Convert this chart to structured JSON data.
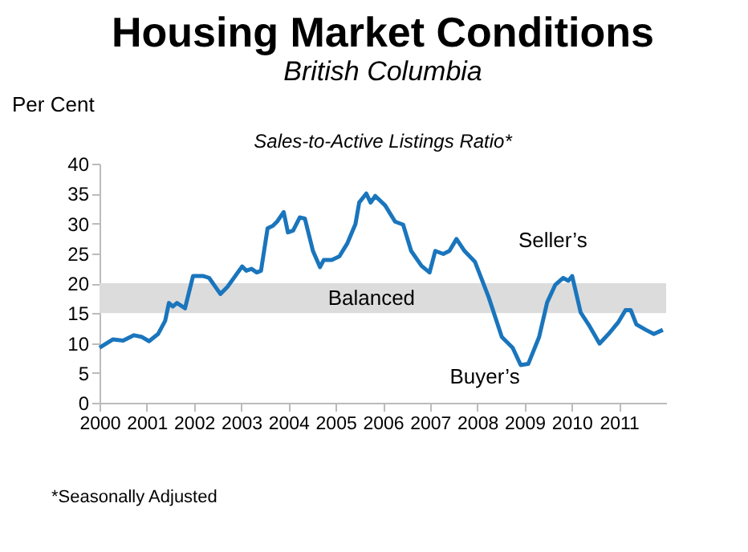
{
  "chart_data": {
    "type": "line",
    "title": "Housing Market Conditions",
    "subtitle": "British Columbia",
    "ylabel": "Per Cent",
    "annotations": [
      "Sales-to-Active Listings Ratio*",
      "Seller’s",
      "Buyer’s",
      "*Seasonally Adjusted"
    ],
    "x": [
      2000,
      2000.28,
      2000.5,
      2000.73,
      2000.9,
      2001.05,
      2001.24,
      2001.39,
      2001.47,
      2001.55,
      2001.64,
      2001.81,
      2001.98,
      2002.2,
      2002.32,
      2002.56,
      2002.71,
      2003.02,
      2003.11,
      2003.22,
      2003.33,
      2003.42,
      2003.56,
      2003.67,
      2003.76,
      2003.9,
      2003.99,
      2004.1,
      2004.24,
      2004.35,
      2004.52,
      2004.67,
      2004.75,
      2004.92,
      2005.08,
      2005.25,
      2005.42,
      2005.5,
      2005.65,
      2005.74,
      2005.84,
      2006.05,
      2006.26,
      2006.43,
      2006.6,
      2006.82,
      2006.99,
      2007.11,
      2007.28,
      2007.41,
      2007.56,
      2007.73,
      2007.95,
      2008.24,
      2008.52,
      2008.75,
      2008.92,
      2009.08,
      2009.31,
      2009.48,
      2009.65,
      2009.82,
      2009.93,
      2010.01,
      2010.19,
      2010.38,
      2010.59,
      2010.78,
      2010.98,
      2011.14,
      2011.25,
      2011.37,
      2011.57,
      2011.74,
      2011.93
    ],
    "values": [
      9.2,
      10.6,
      10.4,
      11.3,
      11.0,
      10.3,
      11.5,
      13.7,
      16.7,
      16.1,
      16.7,
      15.8,
      21.2,
      21.2,
      20.9,
      18.2,
      19.4,
      22.8,
      22.1,
      22.4,
      21.8,
      22.1,
      29.2,
      29.6,
      30.3,
      31.9,
      28.5,
      28.8,
      31.0,
      30.8,
      25.4,
      22.7,
      23.9,
      23.9,
      24.5,
      26.7,
      29.9,
      33.5,
      35.0,
      33.5,
      34.6,
      33.0,
      30.3,
      29.8,
      25.4,
      22.9,
      21.8,
      25.4,
      24.9,
      25.4,
      27.4,
      25.4,
      23.6,
      17.7,
      11.0,
      9.2,
      6.3,
      6.5,
      11.0,
      16.8,
      19.7,
      20.9,
      20.4,
      21.2,
      15.1,
      12.8,
      9.9,
      11.5,
      13.4,
      15.5,
      15.5,
      13.1,
      12.2,
      11.5,
      12.2
    ],
    "color": "#1a75bc",
    "xlim": [
      2000,
      2012
    ],
    "xticks": [
      2000,
      2001,
      2002,
      2003,
      2004,
      2005,
      2006,
      2007,
      2008,
      2009,
      2010,
      2011
    ],
    "ylim": [
      0,
      40
    ],
    "yticks": [
      0,
      5,
      10,
      15,
      20,
      25,
      30,
      35,
      40
    ],
    "bands": [
      {
        "axis": "y",
        "from": 15,
        "to": 20,
        "label": "Balanced",
        "color": "#dcdcdc"
      }
    ],
    "grid": false
  }
}
